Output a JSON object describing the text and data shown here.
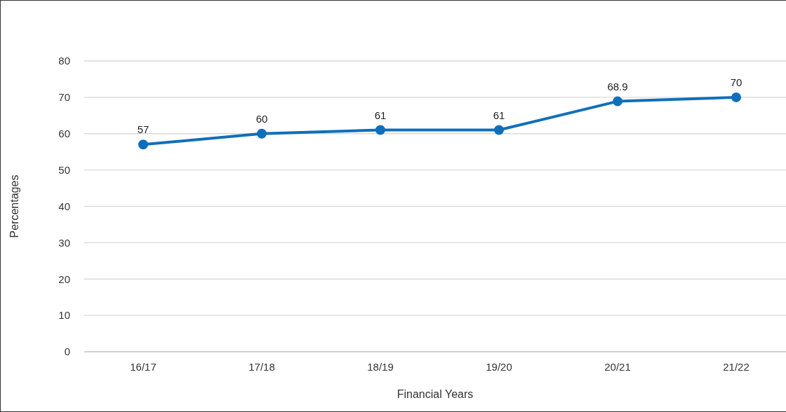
{
  "chart_data": {
    "type": "line",
    "xlabel": "Financial Years",
    "ylabel": "Percentages",
    "categories": [
      "16/17",
      "17/18",
      "18/19",
      "19/20",
      "20/21",
      "21/22"
    ],
    "series": [
      {
        "color": "#0f6fba",
        "values": [
          57,
          60,
          61,
          61,
          68.9,
          70
        ]
      }
    ],
    "ylim": [
      0,
      80
    ],
    "yticks": [
      0,
      10,
      20,
      30,
      40,
      50,
      60,
      70,
      80
    ],
    "grid": "y",
    "marker": "circle",
    "line_style": "solid",
    "data_labels": true,
    "legend": false
  }
}
